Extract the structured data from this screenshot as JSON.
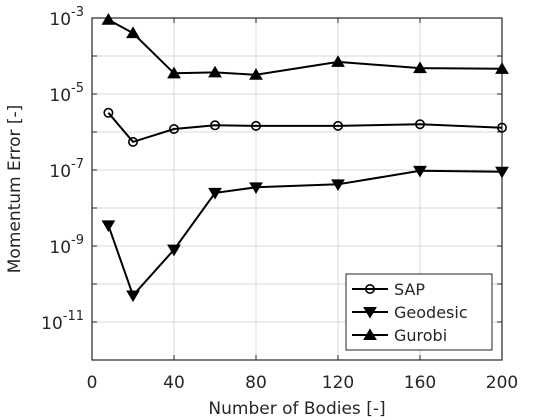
{
  "chart_data": {
    "type": "line",
    "xlabel": "Number of Bodies [-]",
    "ylabel": "Momentum Error [-]",
    "xlim": [
      0,
      200
    ],
    "ylim": [
      1e-12,
      0.001
    ],
    "yscale": "log",
    "grid": true,
    "legend_position": "bottom-right",
    "x_ticks": [
      0,
      40,
      80,
      120,
      160,
      200
    ],
    "x_tick_labels": [
      "0",
      "40",
      "80",
      "120",
      "160",
      "200"
    ],
    "y_ticks": [
      {
        "value": 0.001,
        "base": "10",
        "exp": "-3"
      },
      {
        "value": 1e-05,
        "base": "10",
        "exp": "-5"
      },
      {
        "value": 1e-07,
        "base": "10",
        "exp": "-7"
      },
      {
        "value": 1e-09,
        "base": "10",
        "exp": "-9"
      },
      {
        "value": 1e-11,
        "base": "10",
        "exp": "-11"
      }
    ],
    "series": [
      {
        "name": "SAP",
        "marker": "circle",
        "x": [
          8,
          20,
          40,
          60,
          80,
          120,
          160,
          200
        ],
        "y": [
          3.2e-06,
          5.5e-07,
          1.2e-06,
          1.5e-06,
          1.45e-06,
          1.45e-06,
          1.6e-06,
          1.3e-06
        ]
      },
      {
        "name": "Geodesic",
        "marker": "triangle-down",
        "x": [
          8,
          20,
          40,
          60,
          80,
          120,
          160,
          200
        ],
        "y": [
          3.5e-09,
          5e-11,
          8e-10,
          2.5e-08,
          3.5e-08,
          4.2e-08,
          9.5e-08,
          9e-08
        ]
      },
      {
        "name": "Gurobi",
        "marker": "triangle-up",
        "x": [
          8,
          20,
          40,
          60,
          80,
          120,
          160,
          200
        ],
        "y": [
          0.0009,
          0.0004,
          3.5e-05,
          3.7e-05,
          3.2e-05,
          7e-05,
          4.8e-05,
          4.6e-05
        ]
      }
    ]
  }
}
